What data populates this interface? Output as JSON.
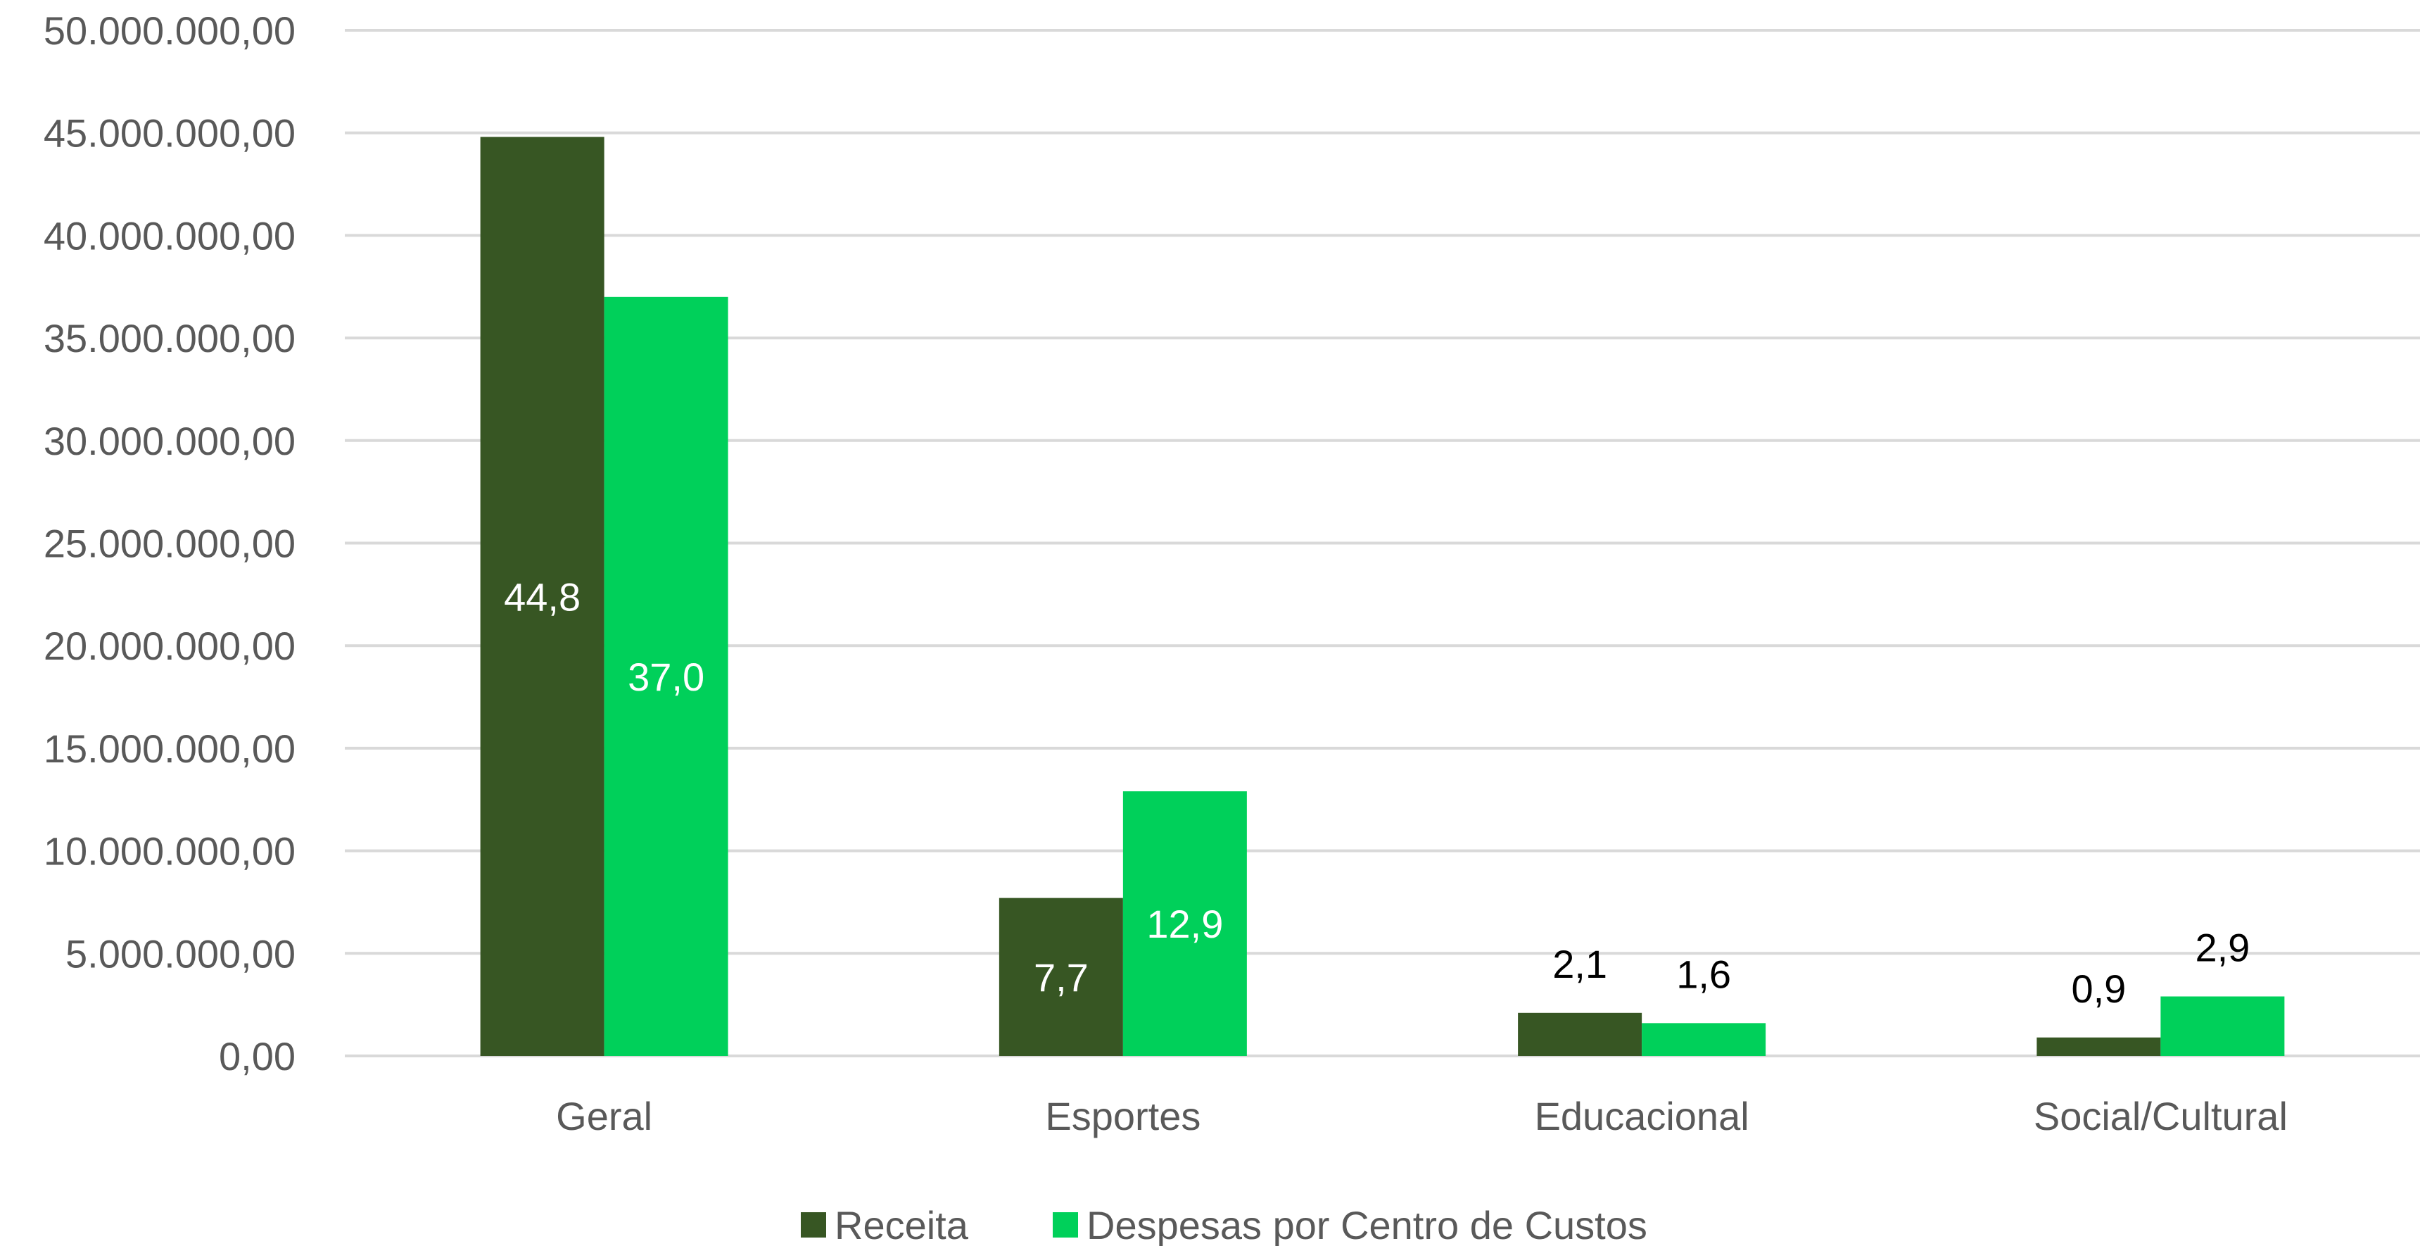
{
  "chart_data": {
    "type": "bar",
    "categories": [
      "Geral",
      "Esportes",
      "Educacional",
      "Social/Cultural"
    ],
    "series": [
      {
        "name": "Receita",
        "color": "#375623",
        "values": [
          44800000,
          7700000,
          2100000,
          900000
        ],
        "labels": [
          "44,8",
          "7,7",
          "2,1",
          "0,9"
        ],
        "label_inside": [
          true,
          true,
          false,
          false
        ]
      },
      {
        "name": "Despesas por Centro de Custos",
        "color": "#00d05a",
        "values": [
          37000000,
          12900000,
          1600000,
          2900000
        ],
        "labels": [
          "37,0",
          "12,9",
          "1,6",
          "2,9"
        ],
        "label_inside": [
          true,
          true,
          false,
          false
        ]
      }
    ],
    "yticks": [
      "0,00",
      "5.000.000,00",
      "10.000.000,00",
      "15.000.000,00",
      "20.000.000,00",
      "25.000.000,00",
      "30.000.000,00",
      "35.000.000,00",
      "40.000.000,00",
      "45.000.000,00",
      "50.000.000,00"
    ],
    "ylim": [
      0,
      50000000
    ],
    "grid": true,
    "legend_position": "bottom",
    "title": "",
    "xlabel": "",
    "ylabel": ""
  }
}
